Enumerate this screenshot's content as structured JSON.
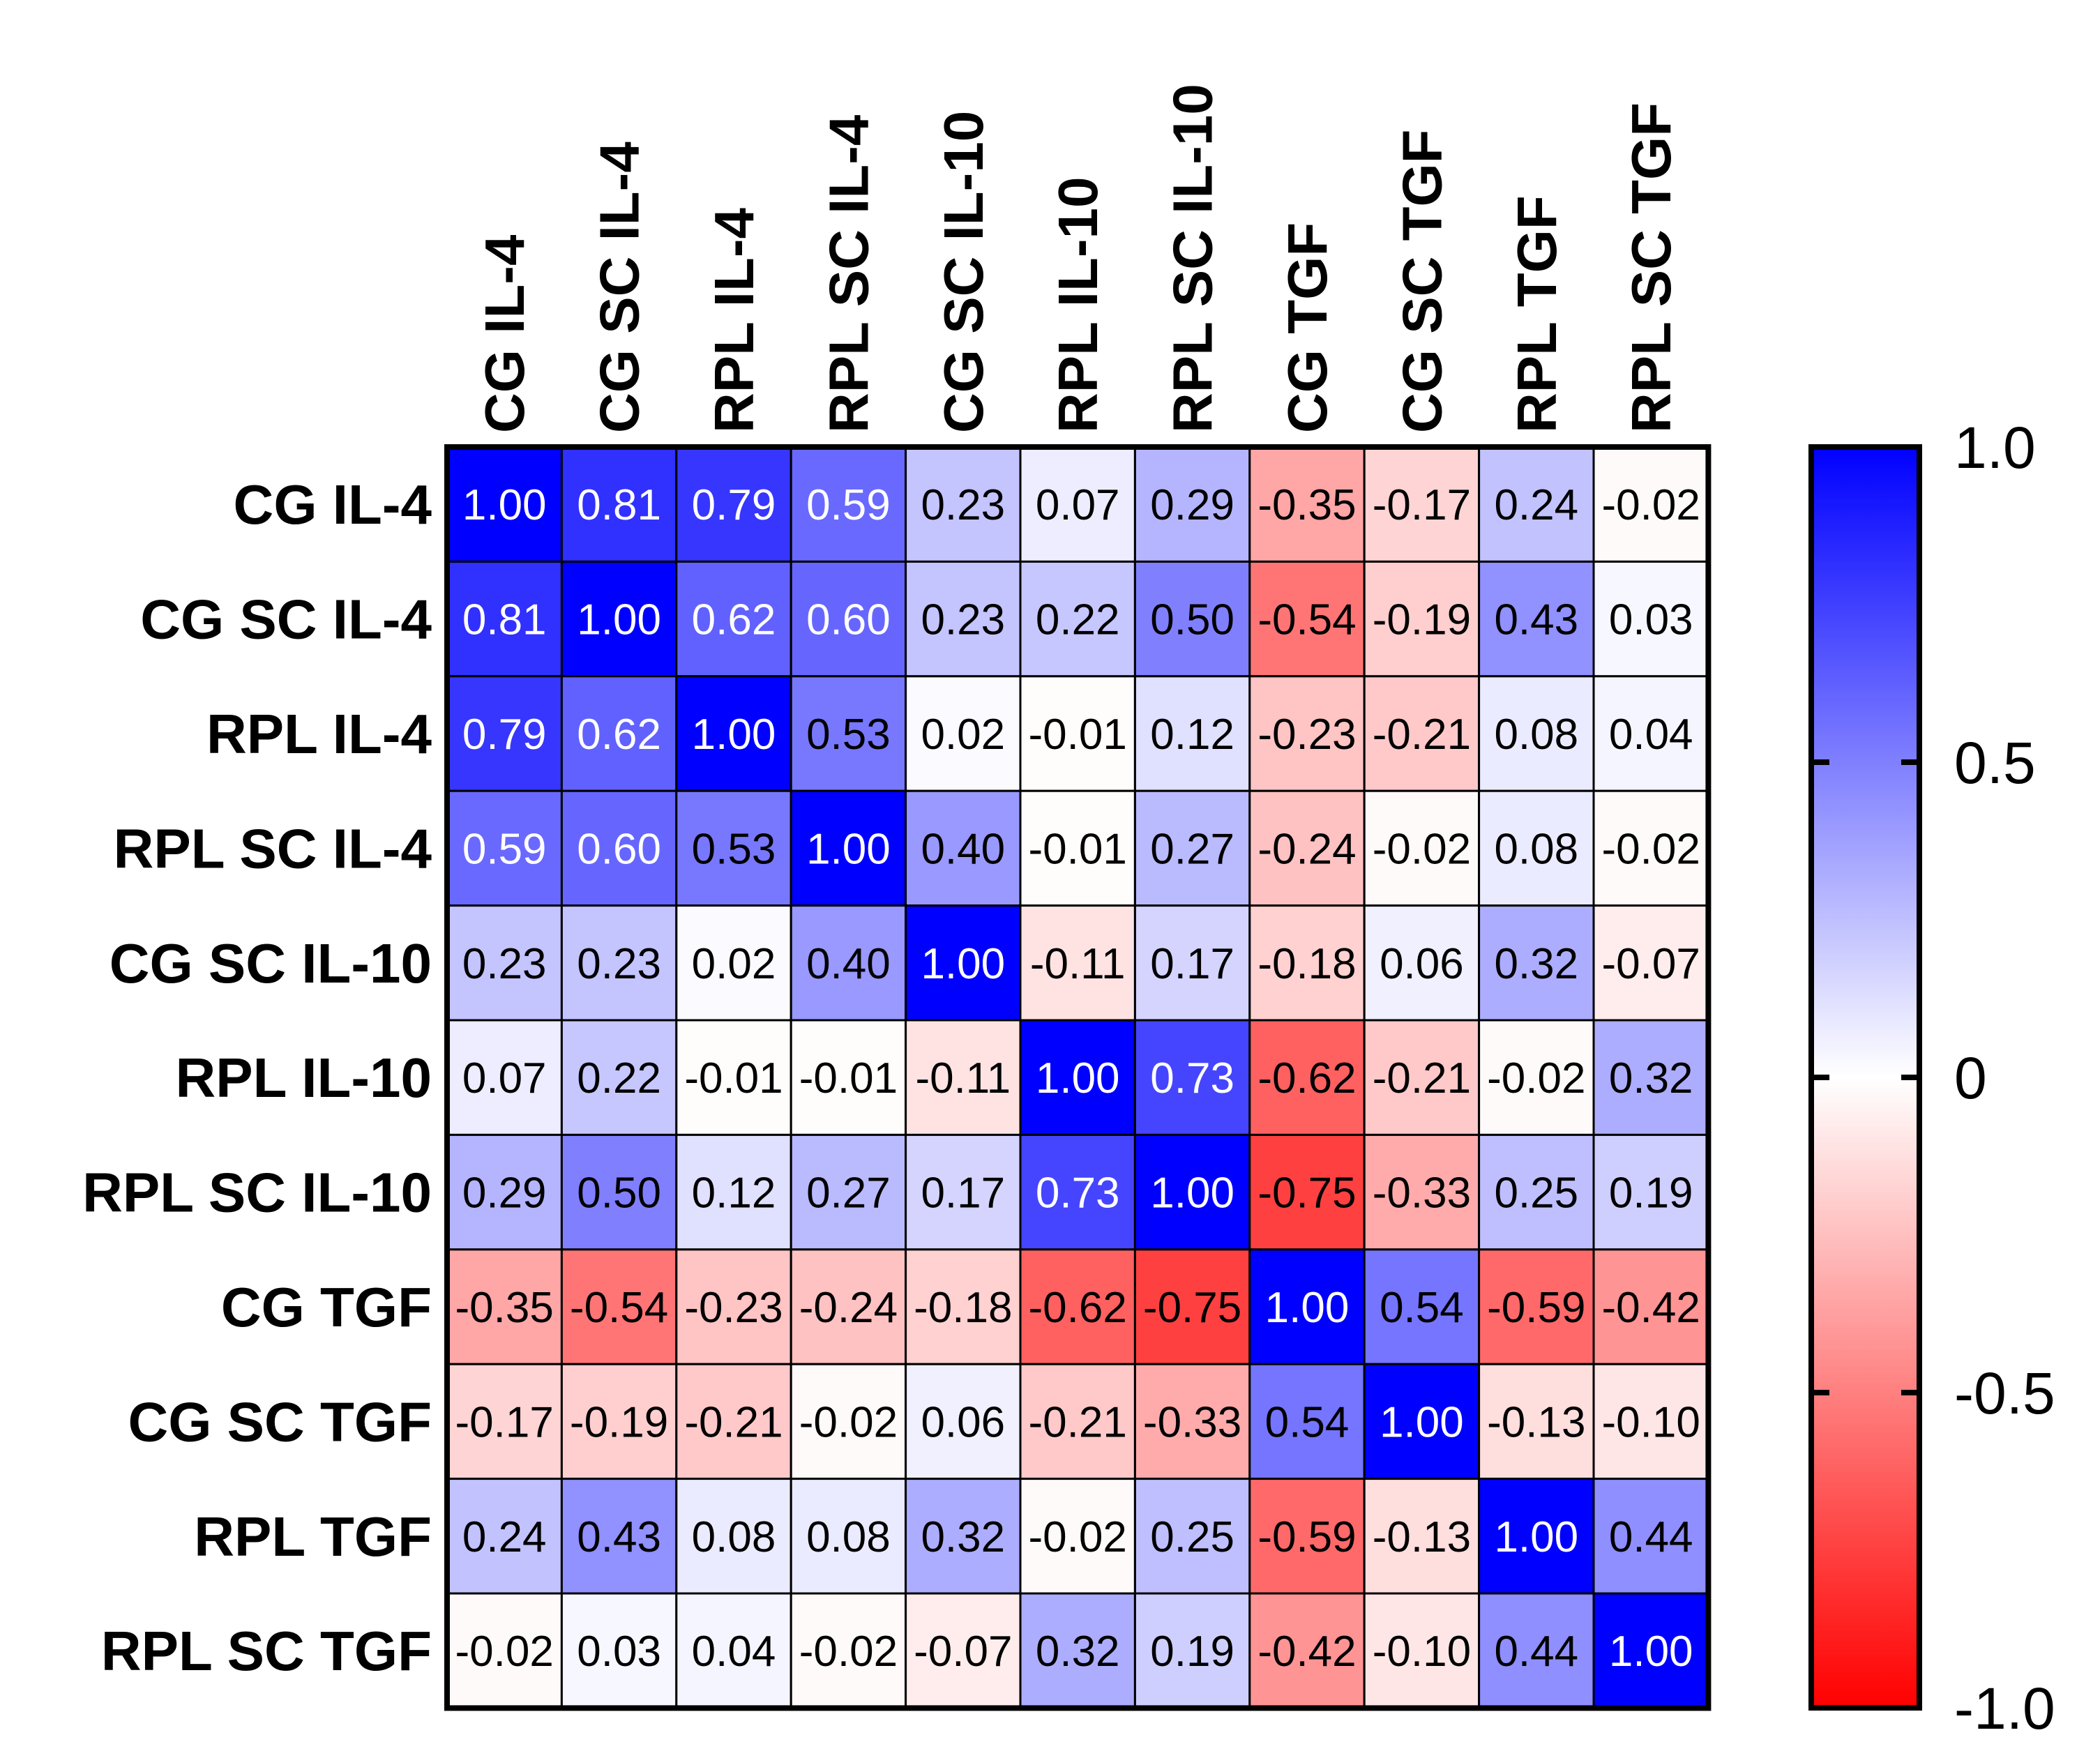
{
  "chart_data": {
    "type": "heatmap",
    "title": "",
    "xlabel": "",
    "ylabel": "",
    "rows": [
      "CG IL-4",
      "CG SC IL-4",
      "RPL IL-4",
      "RPL SC IL-4",
      "CG SC IL-10",
      "RPL IL-10",
      "RPL SC IL-10",
      "CG TGF",
      "CG SC TGF",
      "RPL TGF",
      "RPL SC TGF"
    ],
    "columns": [
      "CG IL-4",
      "CG SC IL-4",
      "RPL IL-4",
      "RPL SC IL-4",
      "CG SC IL-10",
      "RPL IL-10",
      "RPL SC IL-10",
      "CG TGF",
      "CG SC TGF",
      "RPL TGF",
      "RPL SC TGF"
    ],
    "values": [
      [
        1.0,
        0.81,
        0.79,
        0.59,
        0.23,
        0.07,
        0.29,
        -0.35,
        -0.17,
        0.24,
        -0.02
      ],
      [
        0.81,
        1.0,
        0.62,
        0.6,
        0.23,
        0.22,
        0.5,
        -0.54,
        -0.19,
        0.43,
        0.03
      ],
      [
        0.79,
        0.62,
        1.0,
        0.53,
        0.02,
        -0.01,
        0.12,
        -0.23,
        -0.21,
        0.08,
        0.04
      ],
      [
        0.59,
        0.6,
        0.53,
        1.0,
        0.4,
        -0.01,
        0.27,
        -0.24,
        -0.02,
        0.08,
        -0.02
      ],
      [
        0.23,
        0.23,
        0.02,
        0.4,
        1.0,
        -0.11,
        0.17,
        -0.18,
        0.06,
        0.32,
        -0.07
      ],
      [
        0.07,
        0.22,
        -0.01,
        -0.01,
        -0.11,
        1.0,
        0.73,
        -0.62,
        -0.21,
        -0.02,
        0.32
      ],
      [
        0.29,
        0.5,
        0.12,
        0.27,
        0.17,
        0.73,
        1.0,
        -0.75,
        -0.33,
        0.25,
        0.19
      ],
      [
        -0.35,
        -0.54,
        -0.23,
        -0.24,
        -0.18,
        -0.62,
        -0.75,
        1.0,
        0.54,
        -0.59,
        -0.42
      ],
      [
        -0.17,
        -0.19,
        -0.21,
        -0.02,
        0.06,
        -0.21,
        -0.33,
        0.54,
        1.0,
        -0.13,
        -0.1
      ],
      [
        0.24,
        0.43,
        0.08,
        0.08,
        0.32,
        -0.02,
        0.25,
        -0.59,
        -0.13,
        1.0,
        0.44
      ],
      [
        -0.02,
        0.03,
        0.04,
        -0.02,
        -0.07,
        0.32,
        0.19,
        -0.42,
        -0.1,
        0.44,
        1.0
      ]
    ],
    "value_format": "2 decimals",
    "colorscale": {
      "min": -1.0,
      "max": 1.0,
      "min_color": "#ff0000",
      "mid_color": "#ffffff",
      "max_color": "#0000ff",
      "ticks": [
        {
          "value": 1.0,
          "label": "1.0"
        },
        {
          "value": 0.5,
          "label": "0.5"
        },
        {
          "value": 0,
          "label": "0"
        },
        {
          "value": -0.5,
          "label": "-0.5"
        },
        {
          "value": -1.0,
          "label": "-1.0"
        }
      ]
    },
    "colorbar_placement": "right",
    "grid": true
  }
}
